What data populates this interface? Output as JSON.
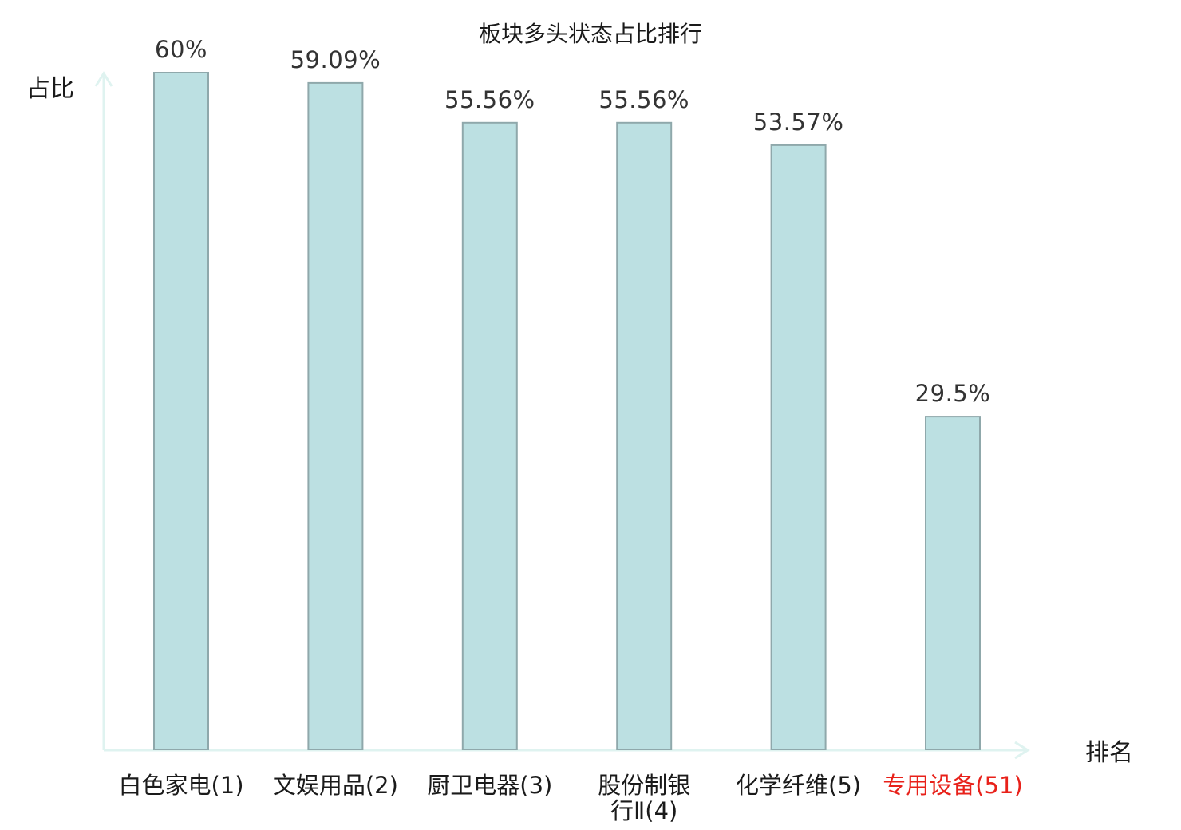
{
  "chart_data": {
    "type": "bar",
    "title": "板块多头状态占比排行",
    "ylabel": "占比",
    "xlabel": "排名",
    "categories": [
      {
        "lines": [
          "白色家电(1)"
        ],
        "highlight": false
      },
      {
        "lines": [
          "文娱用品(2)"
        ],
        "highlight": false
      },
      {
        "lines": [
          "厨卫电器(3)"
        ],
        "highlight": false
      },
      {
        "lines": [
          "股份制银",
          "行Ⅱ(4)"
        ],
        "highlight": false
      },
      {
        "lines": [
          "化学纤维(5)"
        ],
        "highlight": false
      },
      {
        "lines": [
          "专用设备(51)"
        ],
        "highlight": true
      }
    ],
    "values": [
      60,
      59.09,
      55.56,
      55.56,
      53.57,
      29.5
    ],
    "value_labels": [
      "60%",
      "59.09%",
      "55.56%",
      "55.56%",
      "53.57%",
      "29.5%"
    ],
    "ylim": [
      0,
      60
    ],
    "grid": false,
    "legend": "none",
    "colors": {
      "bar_fill": "#bce0e2",
      "bar_stroke": "#8fa8ab",
      "axis": "#dff3f0",
      "category_text": "#1a1a1a",
      "highlight_text": "#e8211a"
    }
  }
}
